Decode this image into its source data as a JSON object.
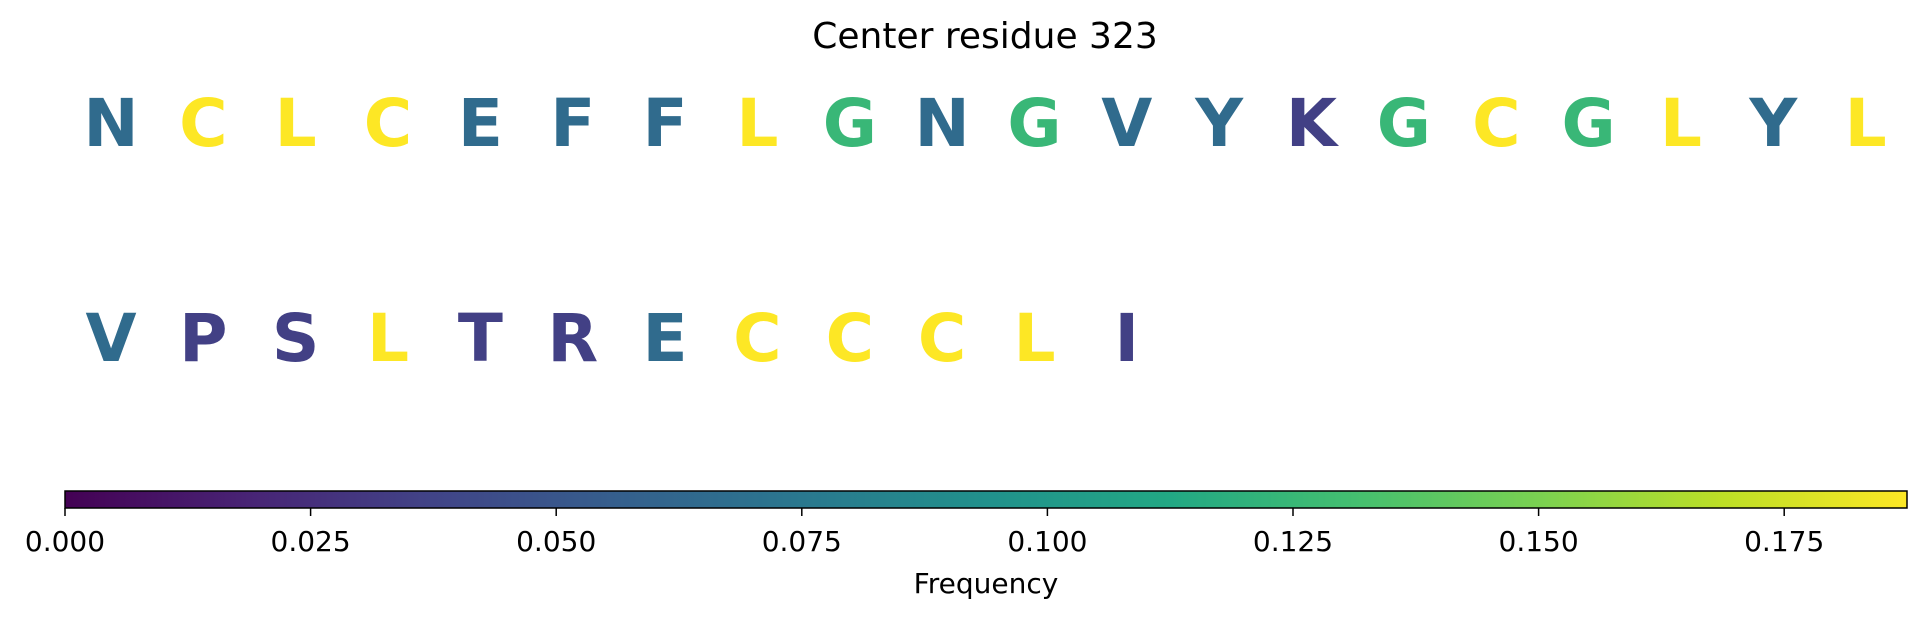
{
  "chart_data": {
    "type": "heatmap",
    "title": "Center residue 323",
    "colormap": "viridis",
    "residues": [
      {
        "letter": "N",
        "value": 0.065
      },
      {
        "letter": "C",
        "value": 0.1875
      },
      {
        "letter": "L",
        "value": 0.1875
      },
      {
        "letter": "C",
        "value": 0.1875
      },
      {
        "letter": "E",
        "value": 0.065
      },
      {
        "letter": "F",
        "value": 0.065
      },
      {
        "letter": "F",
        "value": 0.065
      },
      {
        "letter": "L",
        "value": 0.1875
      },
      {
        "letter": "G",
        "value": 0.125
      },
      {
        "letter": "N",
        "value": 0.065
      },
      {
        "letter": "G",
        "value": 0.125
      },
      {
        "letter": "V",
        "value": 0.065
      },
      {
        "letter": "Y",
        "value": 0.065
      },
      {
        "letter": "K",
        "value": 0.035
      },
      {
        "letter": "G",
        "value": 0.125
      },
      {
        "letter": "C",
        "value": 0.1875
      },
      {
        "letter": "G",
        "value": 0.125
      },
      {
        "letter": "L",
        "value": 0.1875
      },
      {
        "letter": "Y",
        "value": 0.065
      },
      {
        "letter": "L",
        "value": 0.1875
      },
      {
        "letter": "V",
        "value": 0.065
      },
      {
        "letter": "P",
        "value": 0.035
      },
      {
        "letter": "S",
        "value": 0.035
      },
      {
        "letter": "L",
        "value": 0.1875
      },
      {
        "letter": "T",
        "value": 0.035
      },
      {
        "letter": "R",
        "value": 0.035
      },
      {
        "letter": "E",
        "value": 0.065
      },
      {
        "letter": "C",
        "value": 0.1875
      },
      {
        "letter": "C",
        "value": 0.1875
      },
      {
        "letter": "C",
        "value": 0.1875
      },
      {
        "letter": "L",
        "value": 0.1875
      },
      {
        "letter": "I",
        "value": 0.035
      }
    ],
    "colorbar": {
      "label": "Frequency",
      "range": [
        0,
        0.1875
      ],
      "ticks": [
        0.0,
        0.025,
        0.05,
        0.075,
        0.1,
        0.125,
        0.15,
        0.175
      ],
      "tick_labels": [
        "0.000",
        "0.025",
        "0.050",
        "0.075",
        "0.100",
        "0.125",
        "0.150",
        "0.175"
      ],
      "orientation": "horizontal",
      "placement": "bottom"
    }
  }
}
